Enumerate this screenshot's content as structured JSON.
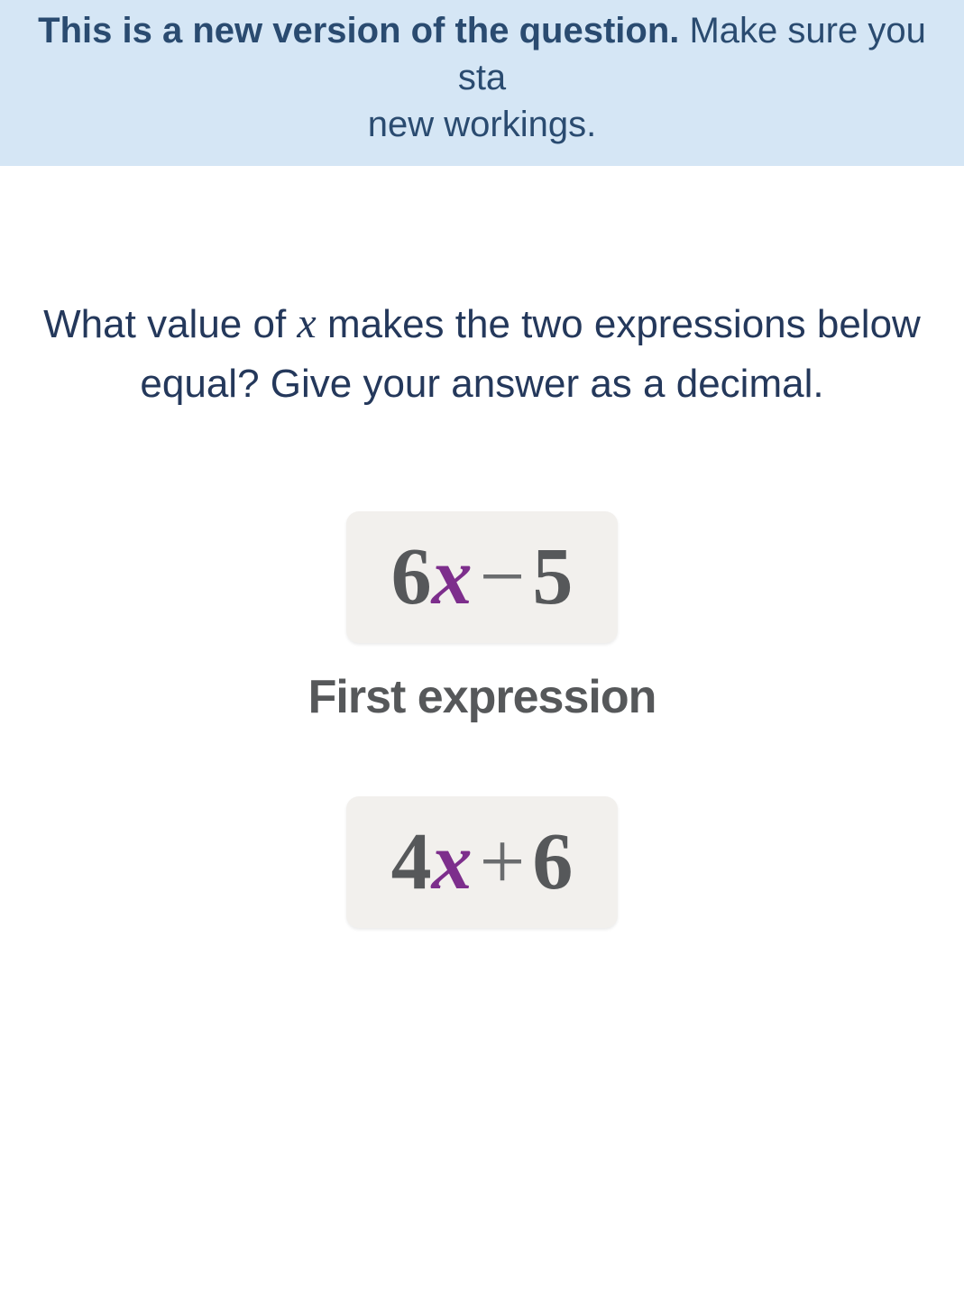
{
  "banner": {
    "bold_text": "This is a new version of the question.",
    "rest_text_line1": " Make sure you sta",
    "rest_text_line2": "new workings."
  },
  "question": {
    "prefix": "What value of ",
    "variable": "x",
    "suffix": " makes the two expressions below equal? Give your answer as a decimal."
  },
  "expressions": [
    {
      "coefficient": "6",
      "variable": "x",
      "operator": "−",
      "constant": "5",
      "label": "First expression"
    },
    {
      "coefficient": "4",
      "variable": "x",
      "operator": "+",
      "constant": "6",
      "label": ""
    }
  ],
  "colors": {
    "banner_bg": "#d5e6f5",
    "banner_text": "#2a4b70",
    "question_text": "#24385b",
    "expr_box_bg": "#f2f0ed",
    "expr_text": "#56585a",
    "variable_color": "#7d2e8c"
  }
}
